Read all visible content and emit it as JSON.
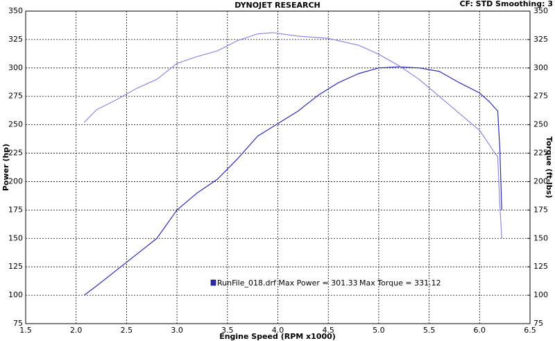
{
  "chart_data": {
    "type": "line",
    "title": "DYNOJET RESEARCH",
    "info": "CF: STD   Smoothing: 3",
    "x_label": "Engine Speed (RPM x1000)",
    "y_label": "Power (hp)",
    "y2_label": "Torque (ft-lbs)",
    "legend_file": "RunFile_018.drf Max Power = 301.33",
    "legend_torque": "Max Torque = 331.12",
    "xlim": [
      1.5,
      6.5
    ],
    "xticks": [
      1.5,
      {
        "value": 2,
        "label": "2.0"
      },
      2.5,
      {
        "value": 3,
        "label": "3.0"
      },
      3.5,
      {
        "value": 4,
        "label": "4.0"
      },
      4.5,
      {
        "value": 5,
        "label": "5.0"
      },
      5.5,
      {
        "value": 6,
        "label": "6.0"
      },
      6.5
    ],
    "ylim": [
      75,
      350
    ],
    "yticks": [
      75,
      100,
      125,
      150,
      175,
      200,
      225,
      250,
      275,
      300,
      325,
      350
    ],
    "y2lim": [
      75,
      350
    ],
    "y2ticks": [
      75,
      100,
      125,
      150,
      175,
      200,
      225,
      250,
      275,
      300,
      325,
      350
    ],
    "grid": true,
    "series": [
      {
        "color": "#2b2bb0",
        "x": [
          2.08,
          2.2,
          2.4,
          2.6,
          2.8,
          3.0,
          3.2,
          3.4,
          3.6,
          3.8,
          4.0,
          4.2,
          4.4,
          4.6,
          4.8,
          5.0,
          5.2,
          5.4,
          5.6,
          5.8,
          6.0,
          6.1,
          6.15,
          6.18,
          6.2,
          6.22
        ],
        "values": [
          100,
          108,
          122,
          136,
          150,
          175,
          190,
          202,
          220,
          240,
          251,
          262,
          276,
          287,
          295,
          300,
          301,
          300,
          297,
          287,
          278,
          270,
          265,
          262,
          230,
          175
        ]
      },
      {
        "color": "#8a8ae0",
        "axis": "y2",
        "x": [
          2.08,
          2.2,
          2.4,
          2.6,
          2.8,
          3.0,
          3.2,
          3.4,
          3.6,
          3.8,
          3.95,
          4.2,
          4.5,
          4.8,
          5.0,
          5.2,
          5.4,
          5.6,
          5.8,
          6.0,
          6.1,
          6.15,
          6.18,
          6.2,
          6.22
        ],
        "values": [
          252,
          263,
          272,
          282,
          290,
          304,
          310,
          315,
          324,
          330,
          331,
          328,
          326,
          320,
          312,
          302,
          290,
          275,
          260,
          245,
          232,
          225,
          222,
          180,
          150
        ]
      }
    ]
  }
}
